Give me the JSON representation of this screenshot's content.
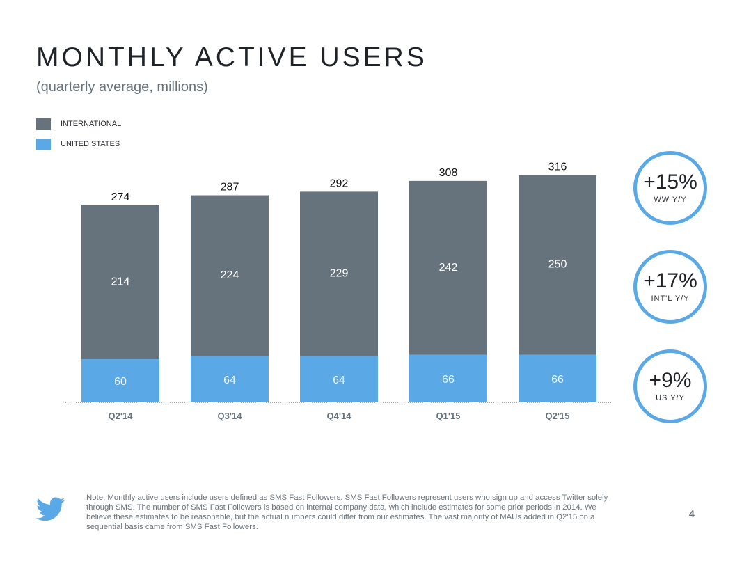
{
  "title": "MONTHLY ACTIVE USERS",
  "subtitle": "(quarterly average, millions)",
  "colors": {
    "international": "#67737c",
    "united_states": "#5aa9e6",
    "circle_border": "#5aa9e6"
  },
  "chart_data": {
    "type": "bar",
    "stacked": true,
    "title": "MONTHLY ACTIVE USERS",
    "subtitle": "(quarterly average, millions)",
    "xlabel": "",
    "ylabel": "",
    "categories": [
      "Q2'14",
      "Q3'14",
      "Q4'14",
      "Q1'15",
      "Q2'15"
    ],
    "series": [
      {
        "name": "UNITED STATES",
        "color": "#5aa9e6",
        "values": [
          60,
          64,
          64,
          66,
          66
        ]
      },
      {
        "name": "INTERNATIONAL",
        "color": "#67737c",
        "values": [
          214,
          224,
          229,
          242,
          250
        ]
      }
    ],
    "totals": [
      274,
      287,
      292,
      308,
      316
    ],
    "ylim": [
      0,
      330
    ],
    "grid": false,
    "legend": {
      "placement": "top-left",
      "entries": [
        "INTERNATIONAL",
        "UNITED STATES"
      ]
    }
  },
  "kpis": [
    {
      "value": "+15%",
      "label": "WW Y/Y"
    },
    {
      "value": "+17%",
      "label": "INT'L Y/Y"
    },
    {
      "value": "+9%",
      "label": "US Y/Y"
    }
  ],
  "footer": {
    "note": "Note: Monthly active users include users defined as SMS Fast Followers. SMS Fast Followers represent users who sign up and access Twitter solely through SMS. The number of SMS Fast Followers is based on internal company data, which include estimates for some prior periods in 2014. We believe these estimates to be reasonable, but the actual numbers could differ from our estimates. The vast majority of MAUs added in Q2'15 on a sequential basis came from SMS Fast Followers.",
    "page_number": "4",
    "logo": "twitter-bird-icon"
  }
}
